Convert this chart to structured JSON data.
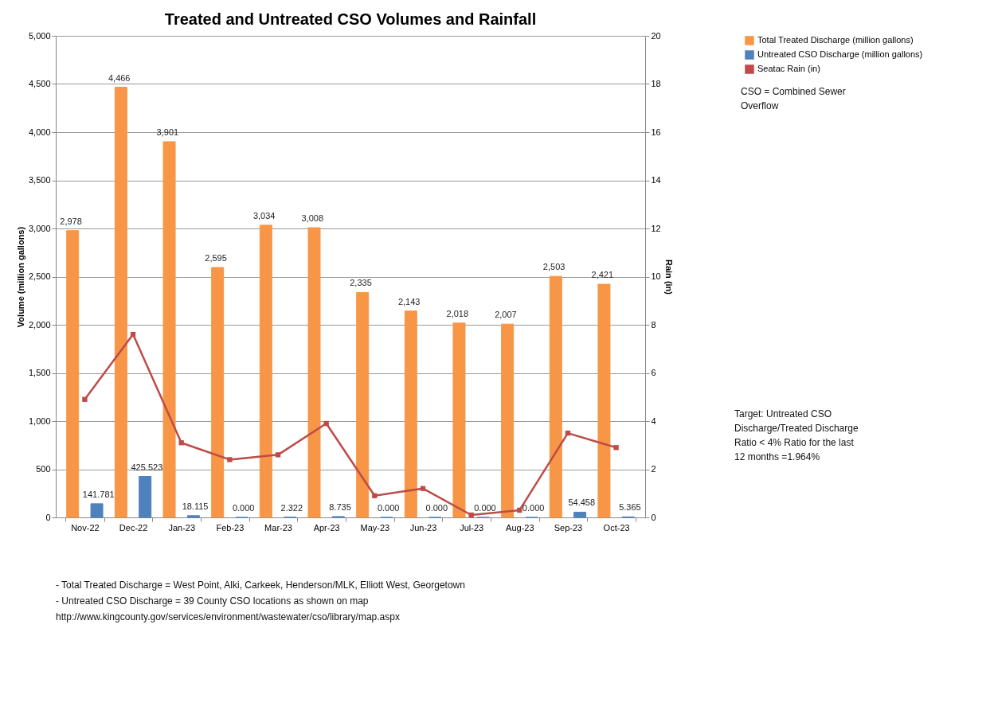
{
  "chart_data": {
    "type": "bar",
    "title": "Treated and Untreated CSO Volumes and Rainfall",
    "ylabel": "Volume (million gallons)",
    "y2label": "Rain (in)",
    "categories": [
      "Nov-22",
      "Dec-22",
      "Jan-23",
      "Feb-23",
      "Mar-23",
      "Apr-23",
      "May-23",
      "Jun-23",
      "Jul-23",
      "Aug-23",
      "Sep-23",
      "Oct-23"
    ],
    "series": [
      {
        "name": "Total Treated Discharge (million gallons)",
        "color": "#f79646",
        "values": [
          2978,
          4466,
          3901,
          2595,
          3034,
          3008,
          2335,
          2143,
          2018,
          2007,
          2503,
          2421
        ],
        "value_labels": [
          "2,978",
          "4,466",
          "3,901",
          "2,595",
          "3,034",
          "3,008",
          "2,335",
          "2,143",
          "2,018",
          "2,007",
          "2,503",
          "2,421"
        ]
      },
      {
        "name": "Untreated CSO Discharge (million gallons)",
        "color": "#4f81bd",
        "values": [
          141.781,
          425.523,
          18.115,
          0,
          2.322,
          8.735,
          0,
          0,
          0,
          0,
          54.458,
          5.365
        ],
        "value_labels": [
          "141.781",
          "425.523",
          "18.115",
          "0.000",
          "2.322",
          "8.735",
          "0.000",
          "0.000",
          "0.000",
          "0.000",
          "54.458",
          "5.365"
        ]
      },
      {
        "name": "Seatac Rain (in)",
        "type": "line",
        "axis": "y2",
        "color": "#be4b48",
        "marker": "square",
        "values": [
          4.9,
          7.6,
          3.1,
          2.4,
          2.6,
          3.9,
          0.9,
          1.2,
          0.1,
          0.3,
          3.5,
          2.9
        ]
      }
    ],
    "ylim": [
      0,
      5000
    ],
    "yticks": [
      {
        "value": 0,
        "label": "0"
      },
      {
        "value": 500,
        "label": "500"
      },
      {
        "value": 1000,
        "label": "1,000"
      },
      {
        "value": 1500,
        "label": "1,500"
      },
      {
        "value": 2000,
        "label": "2,000"
      },
      {
        "value": 2500,
        "label": "2,500"
      },
      {
        "value": 3000,
        "label": "3,000"
      },
      {
        "value": 3500,
        "label": "3,500"
      },
      {
        "value": 4000,
        "label": "4,000"
      },
      {
        "value": 4500,
        "label": "4,500"
      },
      {
        "value": 5000,
        "label": "5,000"
      }
    ],
    "y2lim": [
      0,
      20
    ],
    "y2ticks": [
      0,
      2,
      4,
      6,
      8,
      10,
      12,
      14,
      16,
      18,
      20
    ],
    "grid": "y",
    "legend": "right",
    "annotations": [
      "CSO = Combined Sewer Overflow",
      "Target: Untreated CSO Discharge/Treated Discharge Ratio < 4% Ratio for the last 12 months =1.964%",
      "- Total Treated Discharge = West Point, Alki, Carkeek, Henderson/MLK, Elliott West, Georgetown",
      "- Untreated CSO Discharge = 39 County CSO locations as shown on map",
      "http://www.kingcounty.gov/services/environment/wastewater/cso/library/map.aspx"
    ]
  }
}
